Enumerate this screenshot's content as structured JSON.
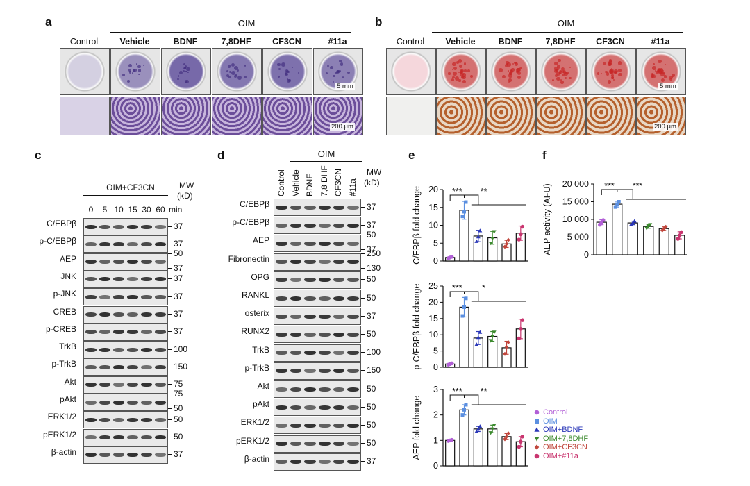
{
  "panels": {
    "a": {
      "label": "a",
      "group_label": "OIM",
      "columns": [
        "Control",
        "Vehicle",
        "BDNF",
        "7,8DHF",
        "CF3CN",
        "#11a"
      ],
      "scale_top": "5 mm",
      "scale_bottom": "200 μm",
      "stain_color": "#5b4a9a"
    },
    "b": {
      "label": "b",
      "group_label": "OIM",
      "columns": [
        "Control",
        "Vehicle",
        "BDNF",
        "7,8DHF",
        "CF3CN",
        "#11a"
      ],
      "scale_top": "5 mm",
      "scale_bottom": "200 μm",
      "stain_color": "#cc4040"
    },
    "c": {
      "label": "c",
      "treatment": "OIM+CF3CN",
      "mw_header": [
        "MW",
        "(kD)"
      ],
      "time_points": [
        "0",
        "5",
        "10",
        "15",
        "30",
        "60"
      ],
      "time_unit": "min",
      "rows": [
        {
          "label": "C/EBPβ",
          "mw": [
            "37"
          ]
        },
        {
          "label": "p-C/EBPβ",
          "mw": [
            "37"
          ]
        },
        {
          "label": "AEP",
          "mw": [
            "50",
            "37"
          ]
        },
        {
          "label": "JNK",
          "mw": [
            "37"
          ]
        },
        {
          "label": "p-JNK",
          "mw": [
            "37"
          ]
        },
        {
          "label": "CREB",
          "mw": [
            "37"
          ]
        },
        {
          "label": "p-CREB",
          "mw": [
            "37"
          ]
        },
        {
          "label": "TrkB",
          "mw": [
            "100"
          ]
        },
        {
          "label": "p-TrkB",
          "mw": [
            "150"
          ]
        },
        {
          "label": "Akt",
          "mw": [
            "75"
          ]
        },
        {
          "label": "pAkt",
          "mw": [
            "75",
            "50"
          ]
        },
        {
          "label": "ERK1/2",
          "mw": [
            "50"
          ]
        },
        {
          "label": "pERK1/2",
          "mw": [
            "50"
          ]
        },
        {
          "label": "β-actin",
          "mw": [
            "37"
          ]
        }
      ]
    },
    "d": {
      "label": "d",
      "group_label": "OIM",
      "mw_header": [
        "MW",
        "(kD)"
      ],
      "lanes": [
        "Control",
        "Vehicle",
        "BDNF",
        "7,8 DHF",
        "CF3CN",
        "#11a"
      ],
      "rows": [
        {
          "label": "C/EBPβ",
          "mw": [
            "37"
          ]
        },
        {
          "label": "p-C/EBPβ",
          "mw": [
            "37"
          ]
        },
        {
          "label": "AEP",
          "mw": [
            "50",
            "37"
          ]
        },
        {
          "label": "Fibronectin",
          "mw": [
            "250",
            "130"
          ]
        },
        {
          "label": "OPG",
          "mw": [
            "50"
          ]
        },
        {
          "label": "RANKL",
          "mw": [
            "50"
          ]
        },
        {
          "label": "osterix",
          "mw": [
            "37"
          ]
        },
        {
          "label": "RUNX2",
          "mw": [
            "50"
          ]
        },
        {
          "label": "TrkB",
          "mw": [
            "100"
          ]
        },
        {
          "label": "p-TrkB",
          "mw": [
            "150"
          ]
        },
        {
          "label": "Akt",
          "mw": [
            "50"
          ]
        },
        {
          "label": "pAkt",
          "mw": [
            "50"
          ]
        },
        {
          "label": "ERK1/2",
          "mw": [
            "50"
          ]
        },
        {
          "label": "pERK1/2",
          "mw": [
            "50"
          ]
        },
        {
          "label": "β-actin",
          "mw": [
            "37"
          ]
        }
      ]
    },
    "e": {
      "label": "e"
    },
    "f": {
      "label": "f"
    }
  },
  "chart_data": [
    {
      "id": "e1",
      "type": "bar",
      "categories": [
        "Control",
        "OIM",
        "OIM+BDNF",
        "OIM+7,8DHF",
        "OIM+CF3CN",
        "OIM+#11a"
      ],
      "values": [
        1,
        14.2,
        7.0,
        6.5,
        4.8,
        7.8
      ],
      "errors": [
        0.2,
        2.5,
        1.6,
        1.8,
        1.0,
        2.0
      ],
      "points": [
        [
          0.8,
          1.0,
          1.2
        ],
        [
          12.5,
          13.8,
          16.5
        ],
        [
          5.5,
          6.8,
          8.5
        ],
        [
          5.0,
          6.3,
          8.2
        ],
        [
          4.0,
          4.8,
          5.9
        ],
        [
          6.0,
          7.5,
          9.6
        ]
      ],
      "ylabel": "C/EBPβ fold change",
      "ylim": [
        0,
        20
      ],
      "yticks": [
        0,
        5,
        10,
        15,
        20
      ],
      "sig": [
        "***",
        "**"
      ]
    },
    {
      "id": "e2",
      "type": "bar",
      "categories": [
        "Control",
        "OIM",
        "OIM+BDNF",
        "OIM+7,8DHF",
        "OIM+CF3CN",
        "OIM+#11a"
      ],
      "values": [
        1,
        18.5,
        9.0,
        9.5,
        6.0,
        11.8
      ],
      "errors": [
        0.2,
        3.0,
        2.0,
        1.5,
        2.0,
        3.0
      ],
      "points": [
        [
          0.8,
          1.0,
          1.2
        ],
        [
          15.8,
          18.5,
          21.2
        ],
        [
          7.0,
          9.2,
          10.8
        ],
        [
          8.2,
          9.5,
          10.8
        ],
        [
          4.1,
          6.2,
          7.7
        ],
        [
          8.9,
          11.8,
          14.5
        ]
      ],
      "ylabel": "p-C/EBPβ fold change",
      "ylim": [
        0,
        25
      ],
      "yticks": [
        0,
        5,
        10,
        15,
        20,
        25
      ],
      "sig": [
        "***",
        "*"
      ]
    },
    {
      "id": "e3",
      "type": "bar",
      "categories": [
        "Control",
        "OIM",
        "OIM+BDNF",
        "OIM+7,8DHF",
        "OIM+CF3CN",
        "OIM+#11a"
      ],
      "values": [
        1.0,
        2.2,
        1.45,
        1.45,
        1.15,
        0.95
      ],
      "errors": [
        0.02,
        0.2,
        0.1,
        0.15,
        0.12,
        0.2
      ],
      "points": [
        [
          0.98,
          1.0,
          1.02
        ],
        [
          2.0,
          2.2,
          2.4
        ],
        [
          1.35,
          1.45,
          1.55
        ],
        [
          1.3,
          1.45,
          1.6
        ],
        [
          1.05,
          1.15,
          1.28
        ],
        [
          0.75,
          0.95,
          1.15
        ]
      ],
      "ylabel": "AEP fold change",
      "ylim": [
        0,
        3
      ],
      "yticks": [
        0,
        1,
        2,
        3
      ],
      "sig": [
        "***",
        "**"
      ]
    },
    {
      "id": "f",
      "type": "bar",
      "categories": [
        "Control",
        "OIM",
        "OIM+BDNF",
        "OIM+7,8DHF",
        "OIM+CF3CN",
        "OIM+#11a"
      ],
      "values": [
        9200,
        14300,
        9000,
        8000,
        7400,
        5500
      ],
      "errors": [
        700,
        800,
        500,
        500,
        500,
        1000
      ],
      "points": [
        [
          8500,
          9200,
          9800
        ],
        [
          13500,
          14300,
          15000
        ],
        [
          8500,
          9000,
          9500
        ],
        [
          7500,
          8000,
          8500
        ],
        [
          6900,
          7400,
          7900
        ],
        [
          4500,
          5500,
          6400
        ]
      ],
      "ylabel": "AEP activity (AFU)",
      "ylim": [
        0,
        20000
      ],
      "yticks": [
        "0",
        "5 000",
        "10 000",
        "15 000",
        "20 000"
      ],
      "sig": [
        "***",
        "***"
      ]
    }
  ],
  "legend": {
    "placement": "bottom-right of panel e",
    "items": [
      {
        "label": "Control",
        "color": "#b15fd6",
        "marker": "circle"
      },
      {
        "label": "OIM",
        "color": "#5b8fe0",
        "marker": "square"
      },
      {
        "label": "OIM+BDNF",
        "color": "#2a37b8",
        "marker": "triangle-up"
      },
      {
        "label": "OIM+7,8DHF",
        "color": "#3c8a2e",
        "marker": "triangle-down"
      },
      {
        "label": "OIM+CF3CN",
        "color": "#c0463c",
        "marker": "diamond"
      },
      {
        "label": "OIM+#11a",
        "color": "#c9356f",
        "marker": "circle"
      }
    ]
  }
}
